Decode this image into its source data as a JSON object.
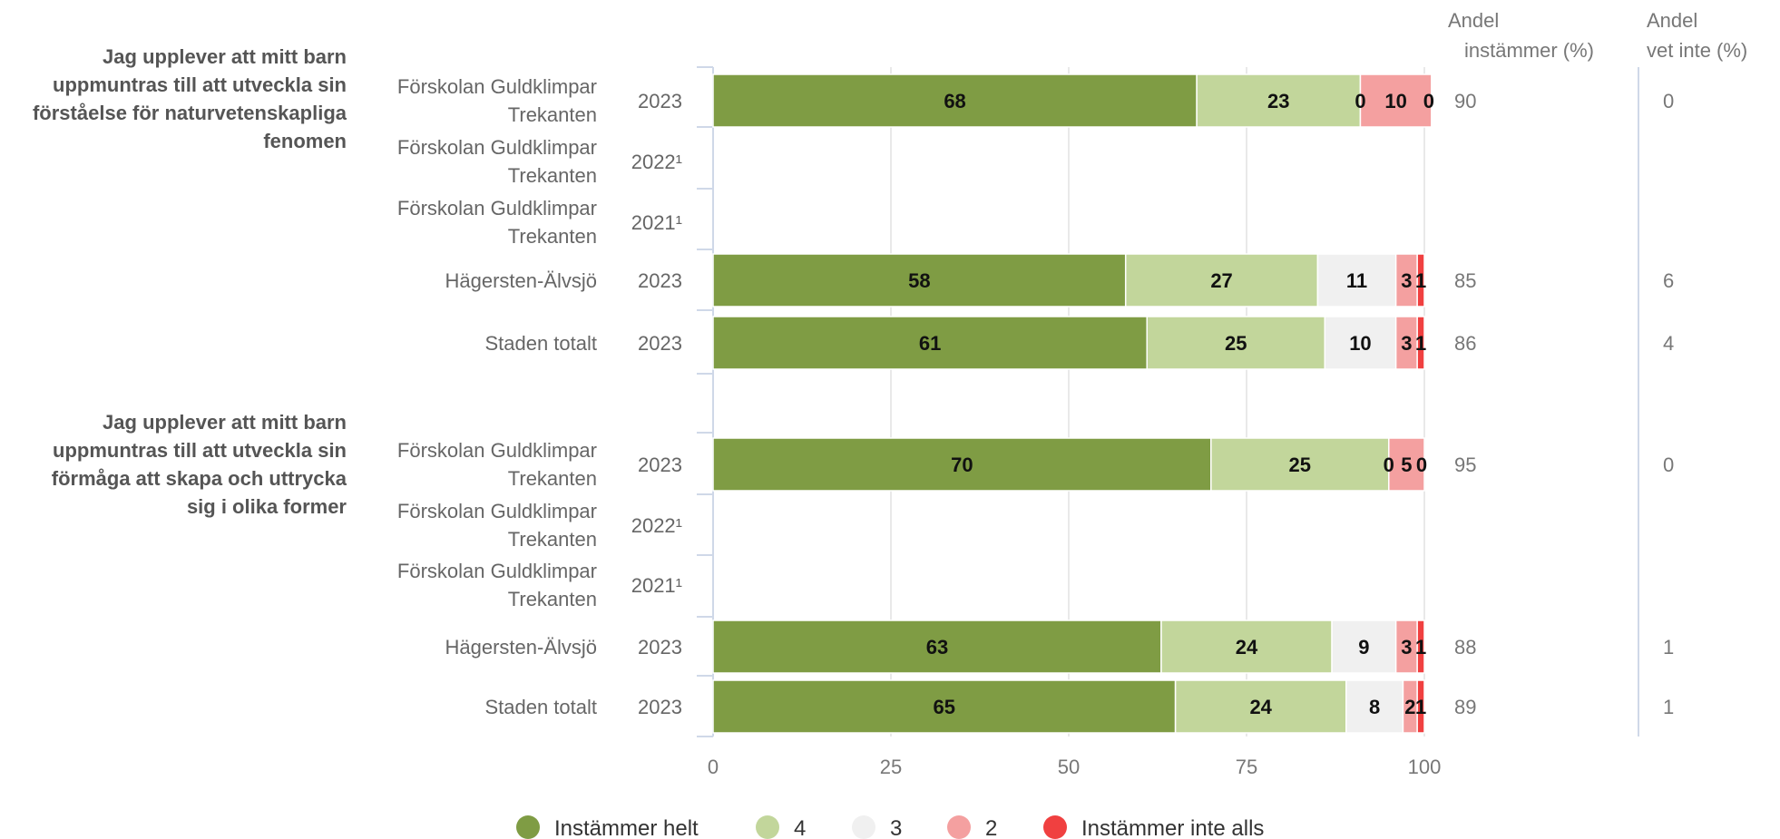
{
  "chart_data": {
    "type": "bar",
    "orientation": "horizontal",
    "stacked": true,
    "xlim": [
      0,
      100
    ],
    "xticks": [
      "0",
      "25",
      "50",
      "75",
      "100"
    ],
    "grid": true,
    "legend_position": "bottom",
    "columns": {
      "andel_instammer": "Andel instämmer (%)",
      "andel_vet_inte": "Andel vet inte (%)"
    },
    "series": [
      {
        "name": "Instämmer helt",
        "color": "#7f9c44"
      },
      {
        "name": "4",
        "color": "#c2d69b"
      },
      {
        "name": "3",
        "color": "#f0f0f0"
      },
      {
        "name": "2",
        "color": "#f4a0a0"
      },
      {
        "name": "Instämmer inte alls",
        "color": "#f04040"
      }
    ],
    "groups": [
      {
        "title": "Jag upplever att mitt barn uppmuntras till att utveckla sin förståelse för naturvetenskapliga fenomen",
        "title_lines": [
          "Jag upplever att mitt barn",
          "uppmuntras till att utveckla sin",
          "förståelse för naturvetenskapliga",
          "fenomen"
        ],
        "rows": [
          {
            "unit_lines": [
              "Förskolan Guldklimpar",
              "Trekanten"
            ],
            "year": "2023",
            "values": [
              68,
              23,
              0,
              10,
              0
            ],
            "andel_instammer": "90",
            "andel_vet_inte": "0"
          },
          {
            "unit_lines": [
              "Förskolan Guldklimpar",
              "Trekanten"
            ],
            "year": "2022¹",
            "values": null,
            "andel_instammer": "",
            "andel_vet_inte": ""
          },
          {
            "unit_lines": [
              "Förskolan Guldklimpar",
              "Trekanten"
            ],
            "year": "2021¹",
            "values": null,
            "andel_instammer": "",
            "andel_vet_inte": ""
          },
          {
            "unit_lines": [
              "Hägersten-Älvsjö"
            ],
            "year": "2023",
            "values": [
              58,
              27,
              11,
              3,
              1
            ],
            "andel_instammer": "85",
            "andel_vet_inte": "6"
          },
          {
            "unit_lines": [
              "Staden totalt"
            ],
            "year": "2023",
            "values": [
              61,
              25,
              10,
              3,
              1
            ],
            "andel_instammer": "86",
            "andel_vet_inte": "4"
          }
        ]
      },
      {
        "title": "Jag upplever att mitt barn uppmuntras till att utveckla sin förmåga att skapa och uttrycka sig i olika former",
        "title_lines": [
          "Jag upplever att mitt barn",
          "uppmuntras till att utveckla sin",
          "förmåga att skapa och uttrycka",
          "sig i olika former"
        ],
        "rows": [
          {
            "unit_lines": [
              "Förskolan Guldklimpar",
              "Trekanten"
            ],
            "year": "2023",
            "values": [
              70,
              25,
              0,
              5,
              0
            ],
            "andel_instammer": "95",
            "andel_vet_inte": "0"
          },
          {
            "unit_lines": [
              "Förskolan Guldklimpar",
              "Trekanten"
            ],
            "year": "2022¹",
            "values": null,
            "andel_instammer": "",
            "andel_vet_inte": ""
          },
          {
            "unit_lines": [
              "Förskolan Guldklimpar",
              "Trekanten"
            ],
            "year": "2021¹",
            "values": null,
            "andel_instammer": "",
            "andel_vet_inte": ""
          },
          {
            "unit_lines": [
              "Hägersten-Älvsjö"
            ],
            "year": "2023",
            "values": [
              63,
              24,
              9,
              3,
              1
            ],
            "andel_instammer": "88",
            "andel_vet_inte": "1"
          },
          {
            "unit_lines": [
              "Staden totalt"
            ],
            "year": "2023",
            "values": [
              65,
              24,
              8,
              2,
              1
            ],
            "andel_instammer": "89",
            "andel_vet_inte": "1"
          }
        ]
      }
    ]
  }
}
